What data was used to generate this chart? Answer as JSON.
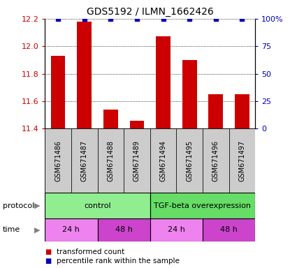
{
  "title": "GDS5192 / ILMN_1662426",
  "samples": [
    "GSM671486",
    "GSM671487",
    "GSM671488",
    "GSM671489",
    "GSM671494",
    "GSM671495",
    "GSM671496",
    "GSM671497"
  ],
  "red_values": [
    11.93,
    12.18,
    11.54,
    11.46,
    12.07,
    11.9,
    11.65,
    11.65
  ],
  "blue_values": [
    100,
    100,
    100,
    100,
    100,
    100,
    100,
    100
  ],
  "ylim_left": [
    11.4,
    12.2
  ],
  "ylim_right": [
    0,
    100
  ],
  "yticks_left": [
    11.4,
    11.6,
    11.8,
    12.0,
    12.2
  ],
  "yticks_right": [
    0,
    25,
    50,
    75,
    100
  ],
  "ytick_labels_right": [
    "0",
    "25",
    "50",
    "75",
    "100%"
  ],
  "protocol_groups": [
    {
      "label": "control",
      "start": 0,
      "end": 4,
      "color": "#90EE90"
    },
    {
      "label": "TGF-beta overexpression",
      "start": 4,
      "end": 8,
      "color": "#66DD66"
    }
  ],
  "time_groups": [
    {
      "label": "24 h",
      "start": 0,
      "end": 2,
      "color": "#EE82EE"
    },
    {
      "label": "48 h",
      "start": 2,
      "end": 4,
      "color": "#CC44CC"
    },
    {
      "label": "24 h",
      "start": 4,
      "end": 6,
      "color": "#EE82EE"
    },
    {
      "label": "48 h",
      "start": 6,
      "end": 8,
      "color": "#CC44CC"
    }
  ],
  "bar_color": "#CC0000",
  "dot_color": "#0000BB",
  "axis_left_color": "#CC0000",
  "axis_right_color": "#0000BB",
  "sample_bg_color": "#CCCCCC",
  "protocol_label": "protocol",
  "time_label": "time",
  "legend_red": "transformed count",
  "legend_blue": "percentile rank within the sample",
  "grid_color": "black",
  "grid_style": "dotted",
  "grid_lw": 0.6
}
